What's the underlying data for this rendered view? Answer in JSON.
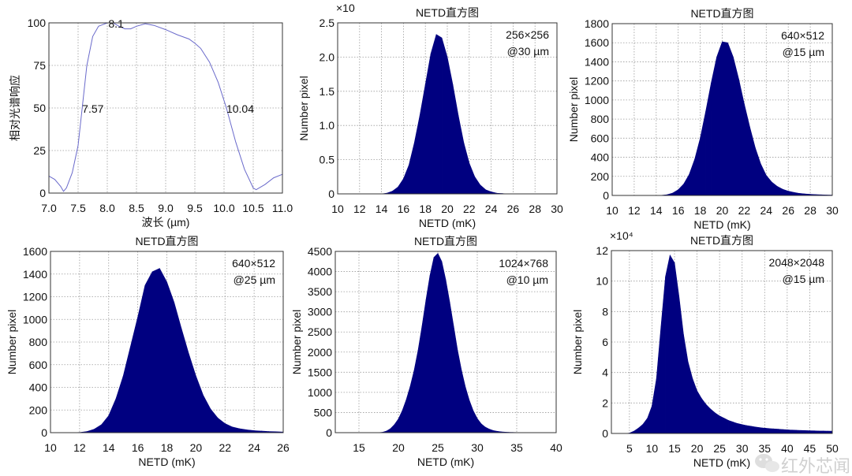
{
  "watermark": "红外芯闻",
  "colors": {
    "histogram": "#000080",
    "response_line": "#6a6acb",
    "grid": "#9a9a9a"
  },
  "chart_data": [
    {
      "type": "line",
      "title": "",
      "xlabel": "波长 (µm)",
      "ylabel": "相对光谱响应",
      "xlim": [
        7,
        11
      ],
      "ylim": [
        0,
        100
      ],
      "grid": true,
      "xticks": [
        {
          "v": 7,
          "t": "7.0"
        },
        {
          "v": 7.5,
          "t": "7.5"
        },
        {
          "v": 8,
          "t": "8.0"
        },
        {
          "v": 8.5,
          "t": "8.5"
        },
        {
          "v": 9,
          "t": "9.0"
        },
        {
          "v": 9.5,
          "t": "9.5"
        },
        {
          "v": 10,
          "t": "10.0"
        },
        {
          "v": 10.5,
          "t": "10.5"
        },
        {
          "v": 11,
          "t": "11.0"
        }
      ],
      "yticks": [
        {
          "v": 0,
          "t": "0"
        },
        {
          "v": 25,
          "t": "25"
        },
        {
          "v": 50,
          "t": "50"
        },
        {
          "v": 75,
          "t": "75"
        },
        {
          "v": 100,
          "t": "100"
        }
      ],
      "x": [
        7.0,
        7.1,
        7.2,
        7.25,
        7.3,
        7.4,
        7.5,
        7.57,
        7.65,
        7.75,
        7.85,
        8.0,
        8.1,
        8.2,
        8.3,
        8.4,
        8.5,
        8.65,
        8.8,
        9.0,
        9.2,
        9.4,
        9.5,
        9.6,
        9.75,
        9.9,
        10.04,
        10.2,
        10.35,
        10.5,
        10.55,
        10.7,
        10.85,
        11.0
      ],
      "y": [
        10,
        8,
        4,
        1,
        3,
        12,
        28,
        50,
        75,
        92,
        98,
        100,
        100,
        98,
        96.5,
        96.5,
        98,
        99.5,
        98.5,
        96,
        93,
        90.5,
        88,
        85,
        77,
        65,
        50,
        30,
        14,
        3,
        2,
        5,
        9,
        11
      ],
      "annotations": [
        {
          "text": "8.1",
          "x": 8.1,
          "y": 100
        },
        {
          "text": "7.57",
          "x": 7.57,
          "y": 50
        },
        {
          "text": "10.04",
          "x": 10.04,
          "y": 50
        }
      ]
    },
    {
      "type": "histogram",
      "title": "NETD直方图",
      "xlabel": "NETD (mK)",
      "ylabel": "Number pixel",
      "y_exponent": "×10",
      "label_lines": [
        "256×256",
        "@30 µm"
      ],
      "xlim": [
        10,
        30
      ],
      "ylim": [
        0,
        2.5
      ],
      "grid": true,
      "xticks": [
        {
          "v": 10,
          "t": "10"
        },
        {
          "v": 12,
          "t": "12"
        },
        {
          "v": 14,
          "t": "14"
        },
        {
          "v": 16,
          "t": "16"
        },
        {
          "v": 18,
          "t": "18"
        },
        {
          "v": 20,
          "t": "20"
        },
        {
          "v": 22,
          "t": "22"
        },
        {
          "v": 24,
          "t": "24"
        },
        {
          "v": 26,
          "t": "26"
        },
        {
          "v": 28,
          "t": "28"
        },
        {
          "v": 30,
          "t": "30"
        }
      ],
      "yticks": [
        {
          "v": 0,
          "t": "0"
        },
        {
          "v": 0.5,
          "t": "0.5"
        },
        {
          "v": 1,
          "t": "1.0"
        },
        {
          "v": 1.5,
          "t": "1.5"
        },
        {
          "v": 2,
          "t": "2.0"
        },
        {
          "v": 2.5,
          "t": "2.5"
        }
      ],
      "x": [
        14,
        14.5,
        15,
        15.5,
        16,
        16.5,
        17,
        17.5,
        18,
        18.5,
        19,
        19.5,
        20,
        20.5,
        21,
        21.5,
        22,
        22.5,
        23,
        23.5,
        24,
        24.5,
        25,
        25.5,
        26
      ],
      "values": [
        0,
        0.01,
        0.04,
        0.1,
        0.22,
        0.42,
        0.75,
        1.15,
        1.6,
        2.05,
        2.33,
        2.28,
        2.0,
        1.6,
        1.15,
        0.75,
        0.45,
        0.25,
        0.13,
        0.06,
        0.03,
        0.01,
        0.005,
        0,
        0
      ]
    },
    {
      "type": "histogram",
      "title": "NETD直方图",
      "xlabel": "NETD (mK)",
      "ylabel": "Number pixel",
      "label_lines": [
        "640×512",
        "@15 µm"
      ],
      "xlim": [
        10,
        30
      ],
      "ylim": [
        0,
        1800
      ],
      "grid": true,
      "xticks": [
        {
          "v": 10,
          "t": "10"
        },
        {
          "v": 12,
          "t": "12"
        },
        {
          "v": 14,
          "t": "14"
        },
        {
          "v": 16,
          "t": "16"
        },
        {
          "v": 18,
          "t": "18"
        },
        {
          "v": 20,
          "t": "20"
        },
        {
          "v": 22,
          "t": "22"
        },
        {
          "v": 24,
          "t": "24"
        },
        {
          "v": 26,
          "t": "26"
        },
        {
          "v": 28,
          "t": "28"
        },
        {
          "v": 30,
          "t": "30"
        }
      ],
      "yticks": [
        {
          "v": 0,
          "t": "0"
        },
        {
          "v": 200,
          "t": "200"
        },
        {
          "v": 400,
          "t": "400"
        },
        {
          "v": 600,
          "t": "600"
        },
        {
          "v": 800,
          "t": "800"
        },
        {
          "v": 1000,
          "t": "1000"
        },
        {
          "v": 1200,
          "t": "1200"
        },
        {
          "v": 1400,
          "t": "1400"
        },
        {
          "v": 1600,
          "t": "1600"
        },
        {
          "v": 1800,
          "t": "1800"
        }
      ],
      "x": [
        14,
        14.5,
        15,
        15.5,
        16,
        16.5,
        17,
        17.5,
        18,
        18.5,
        19,
        19.5,
        20,
        20.5,
        21,
        21.5,
        22,
        22.5,
        23,
        23.5,
        24,
        24.5,
        25,
        25.5,
        26,
        26.5,
        27,
        27.5,
        28,
        28.5,
        29,
        29.5,
        30
      ],
      "values": [
        0,
        2,
        8,
        25,
        60,
        120,
        220,
        380,
        600,
        880,
        1180,
        1450,
        1610,
        1600,
        1450,
        1220,
        960,
        720,
        500,
        330,
        210,
        140,
        95,
        65,
        45,
        32,
        22,
        16,
        12,
        9,
        7,
        5,
        4
      ]
    },
    {
      "type": "histogram",
      "title": "NETD直方图",
      "xlabel": "NETD (mK)",
      "ylabel": "Number pixel",
      "label_lines": [
        "640×512",
        "@25 µm"
      ],
      "xlim": [
        10,
        26
      ],
      "ylim": [
        0,
        1600
      ],
      "grid": true,
      "xticks": [
        {
          "v": 10,
          "t": "10"
        },
        {
          "v": 12,
          "t": "12"
        },
        {
          "v": 14,
          "t": "14"
        },
        {
          "v": 16,
          "t": "16"
        },
        {
          "v": 18,
          "t": "18"
        },
        {
          "v": 20,
          "t": "20"
        },
        {
          "v": 22,
          "t": "22"
        },
        {
          "v": 24,
          "t": "24"
        },
        {
          "v": 26,
          "t": "26"
        }
      ],
      "yticks": [
        {
          "v": 0,
          "t": "0"
        },
        {
          "v": 200,
          "t": "200"
        },
        {
          "v": 400,
          "t": "400"
        },
        {
          "v": 600,
          "t": "600"
        },
        {
          "v": 800,
          "t": "800"
        },
        {
          "v": 1000,
          "t": "1000"
        },
        {
          "v": 1200,
          "t": "1200"
        },
        {
          "v": 1400,
          "t": "1400"
        },
        {
          "v": 1600,
          "t": "1600"
        }
      ],
      "x": [
        11,
        11.5,
        12,
        12.5,
        13,
        13.5,
        14,
        14.5,
        15,
        15.5,
        16,
        16.5,
        17,
        17.5,
        18,
        18.5,
        19,
        19.5,
        20,
        20.5,
        21,
        21.5,
        22,
        22.5,
        23,
        23.5,
        24,
        24.5,
        25,
        25.5,
        26
      ],
      "values": [
        0,
        0,
        2,
        10,
        30,
        70,
        150,
        300,
        500,
        760,
        1020,
        1300,
        1420,
        1450,
        1330,
        1150,
        920,
        700,
        500,
        330,
        210,
        130,
        80,
        50,
        35,
        25,
        18,
        14,
        10,
        8,
        6
      ]
    },
    {
      "type": "histogram",
      "title": "NETD直方图",
      "xlabel": "NETD (mK)",
      "ylabel": "Number pixel",
      "label_lines": [
        "1024×768",
        "@10 µm"
      ],
      "xlim": [
        12,
        40
      ],
      "ylim": [
        0,
        4500
      ],
      "grid": true,
      "xticks": [
        {
          "v": 15,
          "t": "15"
        },
        {
          "v": 20,
          "t": "20"
        },
        {
          "v": 25,
          "t": "25"
        },
        {
          "v": 30,
          "t": "30"
        },
        {
          "v": 35,
          "t": "35"
        },
        {
          "v": 40,
          "t": "40"
        }
      ],
      "yticks": [
        {
          "v": 0,
          "t": "0"
        },
        {
          "v": 500,
          "t": "500"
        },
        {
          "v": 1000,
          "t": "1000"
        },
        {
          "v": 1500,
          "t": "1500"
        },
        {
          "v": 2000,
          "t": "2000"
        },
        {
          "v": 2500,
          "t": "2500"
        },
        {
          "v": 3000,
          "t": "3000"
        },
        {
          "v": 3500,
          "t": "3500"
        },
        {
          "v": 4000,
          "t": "4000"
        },
        {
          "v": 4500,
          "t": "4500"
        }
      ],
      "x": [
        17,
        17.5,
        18,
        18.5,
        19,
        19.5,
        20,
        20.5,
        21,
        21.5,
        22,
        22.5,
        23,
        23.5,
        24,
        24.5,
        25,
        25.5,
        26,
        26.5,
        27,
        27.5,
        28,
        28.5,
        29,
        29.5,
        30,
        30.5,
        31,
        31.5,
        32,
        32.5,
        33,
        33.5,
        34,
        34.5,
        35,
        35.5,
        36,
        36.5,
        37,
        37.5,
        38
      ],
      "values": [
        0,
        2,
        10,
        40,
        100,
        200,
        340,
        550,
        820,
        1150,
        1550,
        2050,
        2650,
        3300,
        3900,
        4350,
        4450,
        4250,
        3800,
        3250,
        2650,
        2050,
        1550,
        1130,
        800,
        540,
        350,
        220,
        140,
        90,
        55,
        35,
        22,
        14,
        9,
        6,
        4,
        3,
        2,
        1,
        1,
        0,
        0
      ]
    },
    {
      "type": "histogram",
      "title": "NETD直方图",
      "xlabel": "NETD (mK)",
      "ylabel": "Number pixel",
      "y_exponent": "×10⁴",
      "label_lines": [
        "2048×2048",
        "@15 µm"
      ],
      "xlim": [
        1,
        50
      ],
      "ylim": [
        0,
        12
      ],
      "grid": true,
      "xticks": [
        {
          "v": 5,
          "t": "5"
        },
        {
          "v": 10,
          "t": "10"
        },
        {
          "v": 15,
          "t": "15"
        },
        {
          "v": 20,
          "t": "20"
        },
        {
          "v": 25,
          "t": "25"
        },
        {
          "v": 30,
          "t": "30"
        },
        {
          "v": 35,
          "t": "35"
        },
        {
          "v": 40,
          "t": "40"
        },
        {
          "v": 45,
          "t": "45"
        },
        {
          "v": 50,
          "t": "50"
        }
      ],
      "yticks": [
        {
          "v": 0,
          "t": "0"
        },
        {
          "v": 2,
          "t": "2"
        },
        {
          "v": 4,
          "t": "4"
        },
        {
          "v": 6,
          "t": "6"
        },
        {
          "v": 8,
          "t": "8"
        },
        {
          "v": 10,
          "t": "10"
        },
        {
          "v": 12,
          "t": "12"
        }
      ],
      "x": [
        1,
        2,
        3,
        4,
        5,
        6,
        7,
        8,
        9,
        10,
        11,
        12,
        13,
        14,
        15,
        16,
        17,
        18,
        19,
        20,
        21,
        22,
        23,
        24,
        25,
        26,
        27,
        28,
        29,
        30,
        31,
        32,
        33,
        34,
        35,
        36,
        37,
        38,
        39,
        40,
        41,
        42,
        43,
        44,
        45,
        46,
        47,
        48,
        49,
        50
      ],
      "values": [
        0,
        0,
        0,
        0,
        0.02,
        0.15,
        0.35,
        0.6,
        1.0,
        1.8,
        3.6,
        7.0,
        10.3,
        11.7,
        11.2,
        9.0,
        6.5,
        4.7,
        3.6,
        2.8,
        2.3,
        1.9,
        1.6,
        1.35,
        1.15,
        1.0,
        0.85,
        0.75,
        0.65,
        0.58,
        0.52,
        0.47,
        0.42,
        0.38,
        0.35,
        0.32,
        0.3,
        0.28,
        0.26,
        0.24,
        0.22,
        0.21,
        0.2,
        0.19,
        0.18,
        0.17,
        0.16,
        0.16,
        0.15,
        0.15
      ]
    }
  ]
}
